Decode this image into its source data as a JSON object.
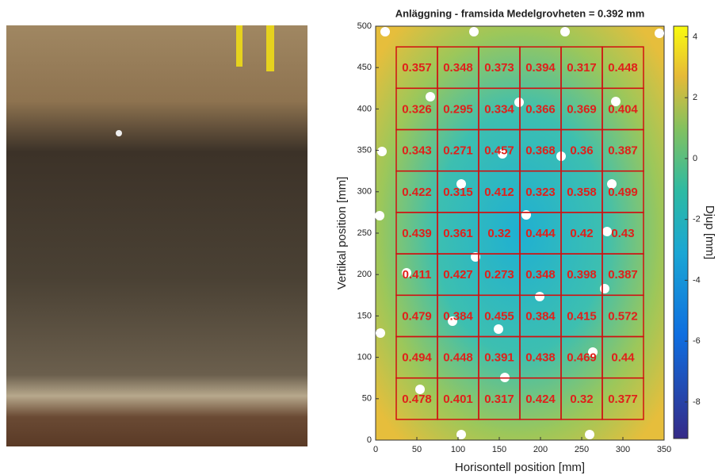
{
  "chart_data": {
    "type": "heatmap",
    "title": "Anläggning - framsida   Medelgrovheten = 0.392 mm",
    "xlabel": "Horisontell position [mm]",
    "ylabel": "Vertikal position [mm]",
    "colorbar_label": "Djup [mm]",
    "xlim": [
      0,
      350
    ],
    "xticks": [
      0,
      50,
      100,
      150,
      200,
      250,
      300,
      350
    ],
    "ylim": [
      0,
      500
    ],
    "yticks": [
      0,
      50,
      100,
      150,
      200,
      250,
      300,
      350,
      400,
      450,
      500
    ],
    "clim": [
      -9.2,
      4.35
    ],
    "cticks": [
      4,
      2,
      0,
      -2,
      -4,
      -6,
      -8
    ],
    "xedges": [
      25,
      75,
      125,
      175,
      225,
      275,
      325
    ],
    "yedges": [
      475,
      425,
      375,
      325,
      275,
      225,
      175,
      125,
      75,
      25
    ],
    "grid_color": "#d01010",
    "cells": [
      [
        0.357,
        0.348,
        0.373,
        0.394,
        0.317,
        0.448
      ],
      [
        0.326,
        0.295,
        0.334,
        0.366,
        0.369,
        0.404
      ],
      [
        0.343,
        0.271,
        0.457,
        0.368,
        0.36,
        0.387
      ],
      [
        0.422,
        0.315,
        0.412,
        0.323,
        0.358,
        0.499
      ],
      [
        0.439,
        0.361,
        0.32,
        0.444,
        0.42,
        0.43
      ],
      [
        0.411,
        0.427,
        0.273,
        0.348,
        0.398,
        0.387
      ],
      [
        0.479,
        0.384,
        0.455,
        0.384,
        0.415,
        0.572
      ],
      [
        0.494,
        0.448,
        0.391,
        0.438,
        0.469,
        0.44
      ],
      [
        0.478,
        0.401,
        0.317,
        0.424,
        0.32,
        0.377
      ]
    ]
  }
}
